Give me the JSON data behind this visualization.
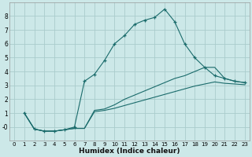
{
  "xlabel": "Humidex (Indice chaleur)",
  "bg_color": "#cce8e8",
  "grid_color": "#aacccc",
  "line_color": "#1a6b6b",
  "xlim": [
    -0.5,
    23.5
  ],
  "ylim": [
    -1.0,
    9.0
  ],
  "xticks": [
    0,
    1,
    2,
    3,
    4,
    5,
    6,
    7,
    8,
    9,
    10,
    11,
    12,
    13,
    14,
    15,
    16,
    17,
    18,
    19,
    20,
    21,
    22,
    23
  ],
  "yticks": [
    0,
    1,
    2,
    3,
    4,
    5,
    6,
    7,
    8
  ],
  "ytick_labels": [
    "-0",
    "1",
    "2",
    "3",
    "4",
    "5",
    "6",
    "7",
    "8"
  ],
  "series": [
    {
      "x": [
        1,
        2,
        3,
        4,
        5,
        6,
        7,
        8,
        9,
        10,
        11,
        12,
        13,
        14,
        15,
        16,
        17,
        18,
        19,
        20,
        21,
        22,
        23
      ],
      "y": [
        1.0,
        -0.15,
        -0.3,
        -0.3,
        -0.2,
        0.0,
        3.3,
        3.8,
        4.8,
        6.0,
        6.6,
        7.4,
        7.7,
        7.9,
        8.5,
        7.6,
        6.0,
        5.0,
        4.3,
        3.7,
        3.5,
        3.3,
        3.2
      ],
      "has_markers": true
    },
    {
      "x": [
        1,
        2,
        3,
        4,
        5,
        6,
        7,
        8,
        9,
        10,
        11,
        12,
        13,
        14,
        15,
        16,
        17,
        18,
        19,
        20,
        21,
        22,
        23
      ],
      "y": [
        1.0,
        -0.15,
        -0.3,
        -0.3,
        -0.2,
        -0.1,
        -0.1,
        1.2,
        1.3,
        1.6,
        2.0,
        2.3,
        2.6,
        2.9,
        3.2,
        3.5,
        3.7,
        4.0,
        4.3,
        4.3,
        3.5,
        3.3,
        3.2
      ],
      "has_markers": false
    },
    {
      "x": [
        1,
        2,
        3,
        4,
        5,
        6,
        7,
        8,
        9,
        10,
        11,
        12,
        13,
        14,
        15,
        16,
        17,
        18,
        19,
        20,
        21,
        22,
        23
      ],
      "y": [
        1.0,
        -0.15,
        -0.3,
        -0.3,
        -0.2,
        -0.1,
        -0.1,
        1.1,
        1.2,
        1.35,
        1.55,
        1.75,
        1.95,
        2.15,
        2.35,
        2.55,
        2.75,
        2.95,
        3.1,
        3.25,
        3.15,
        3.1,
        3.05
      ],
      "has_markers": false
    }
  ]
}
